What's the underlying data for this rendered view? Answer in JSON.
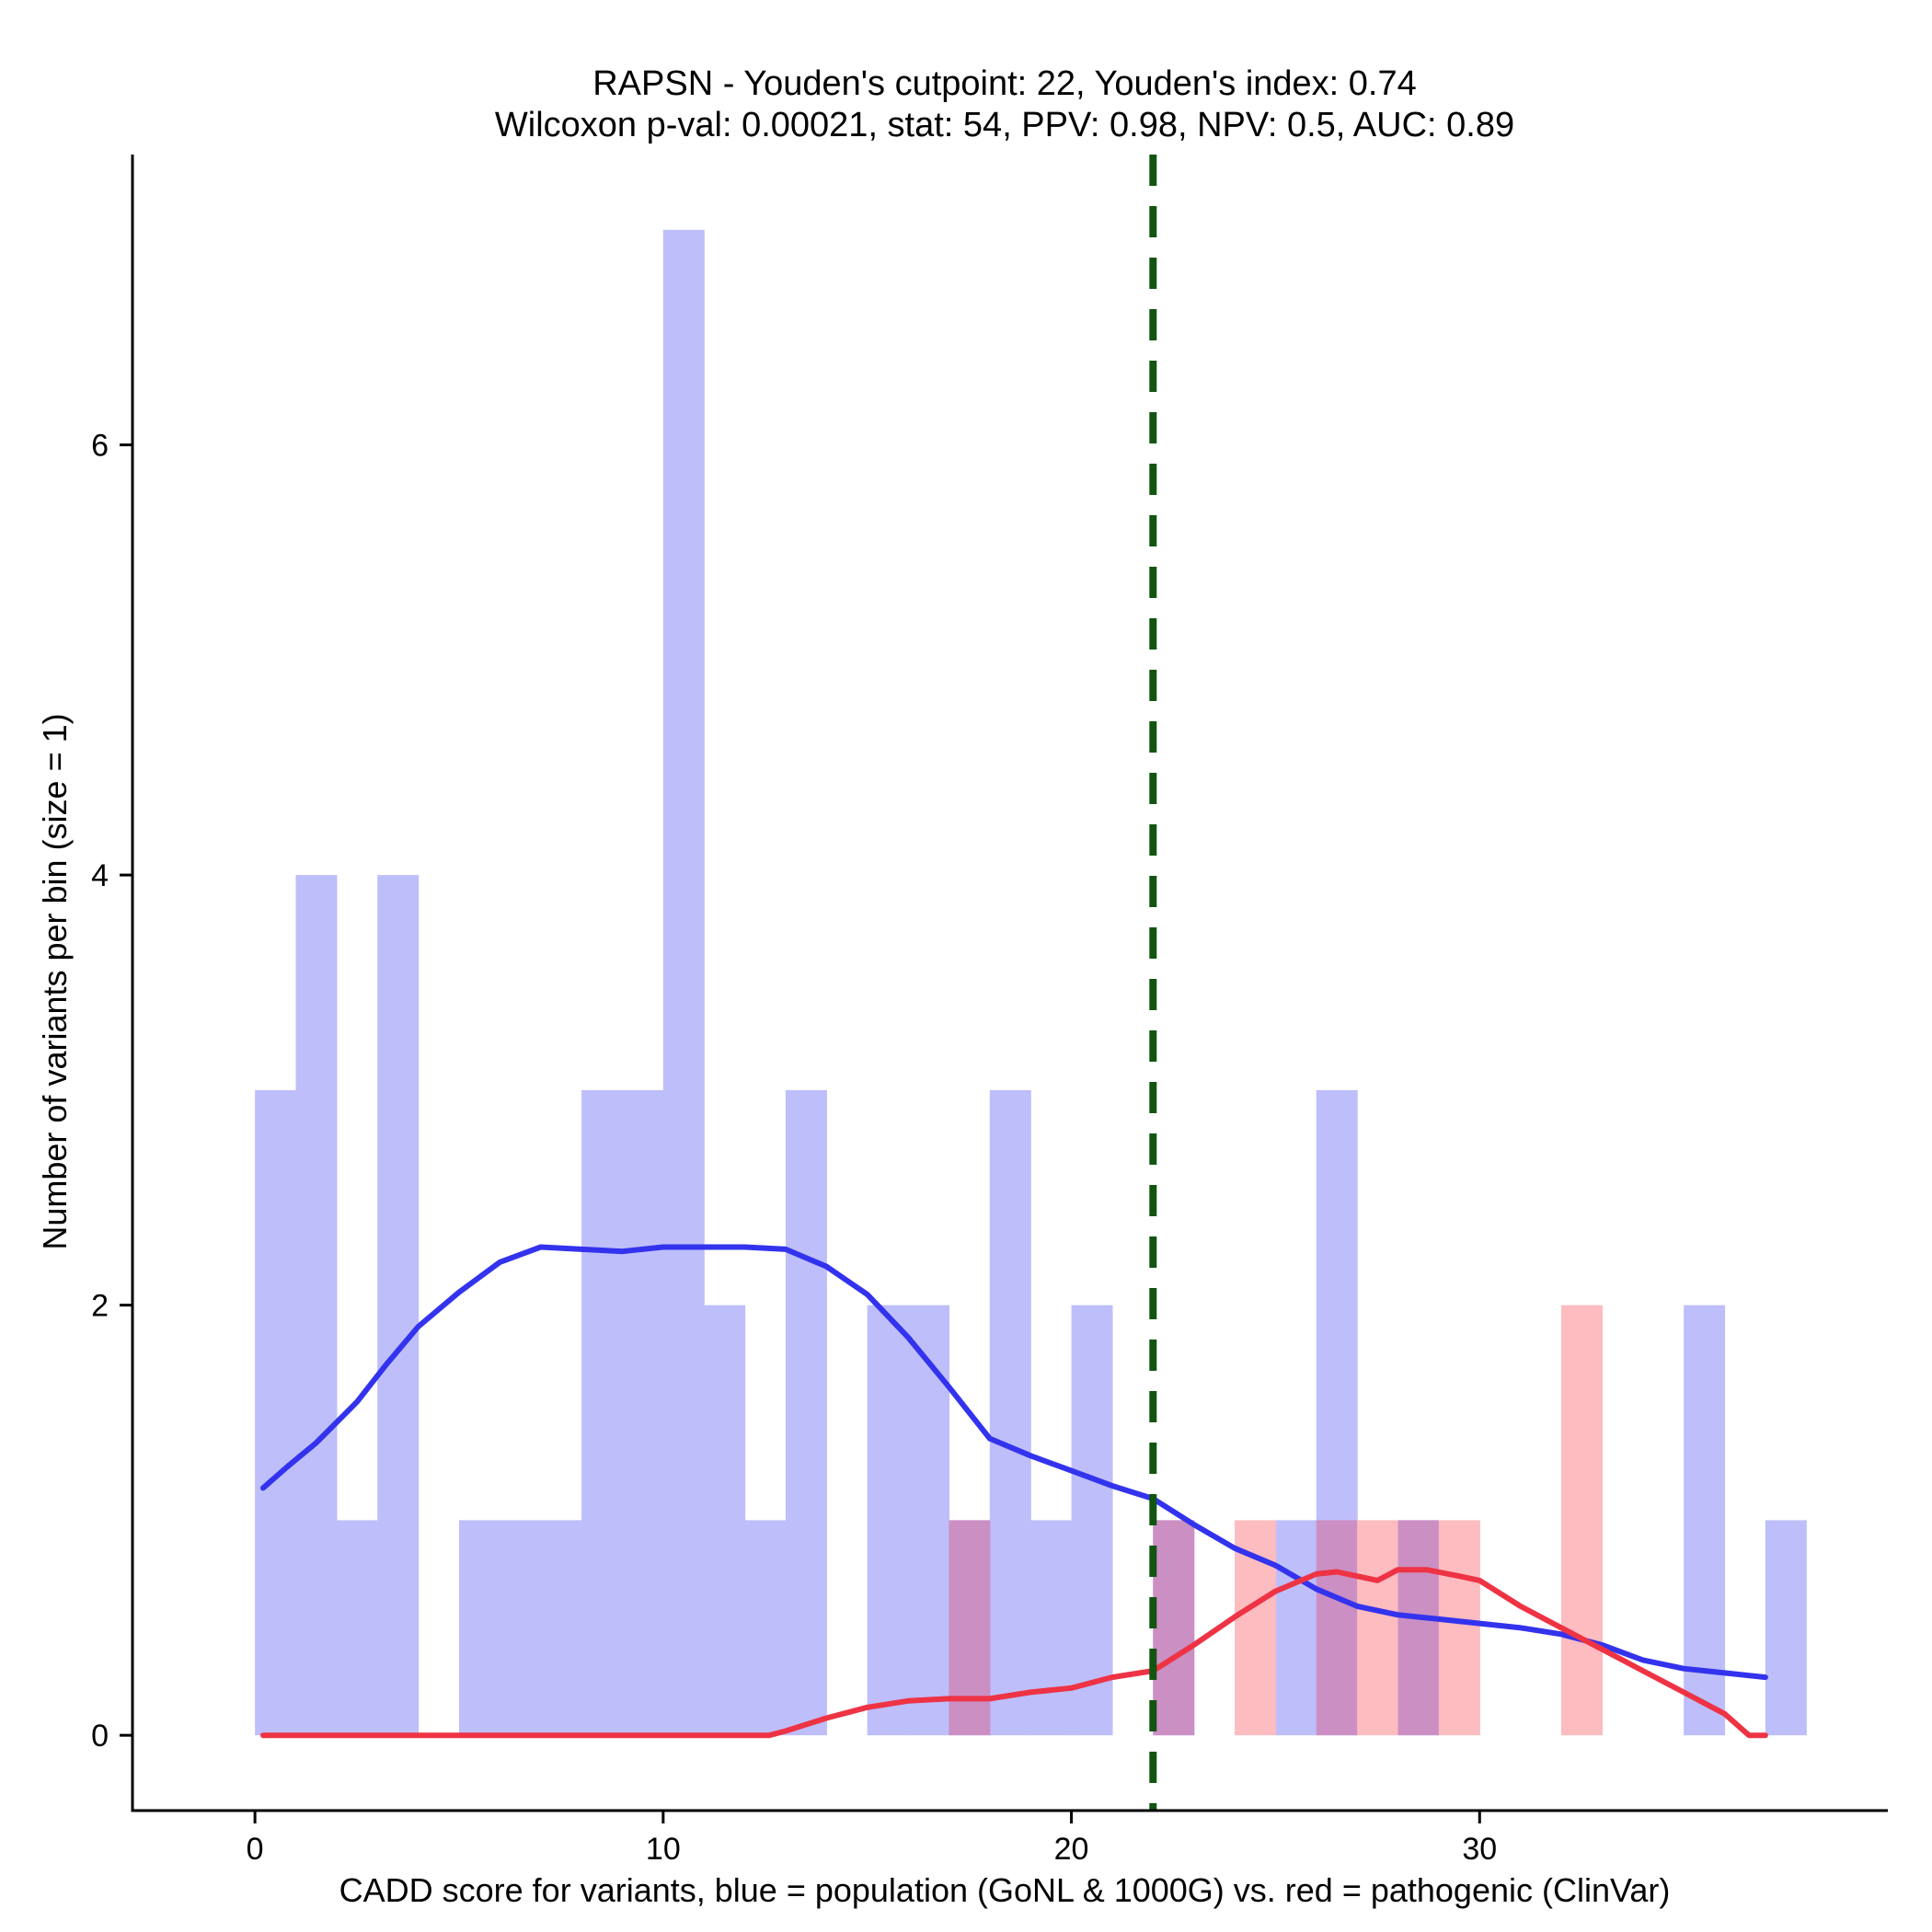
{
  "chart_data": {
    "type": "bar",
    "title": "RAPSN - Youden's cutpoint: 22, Youden's index: 0.74",
    "subtitle": "Wilcoxon p-val: 0.00021, stat: 54, PPV: 0.98, NPV: 0.5, AUC: 0.89",
    "xlabel": "CADD score for variants, blue = population (GoNL & 1000G) vs. red = pathogenic (ClinVar)",
    "ylabel": "Number of variants per bin (size = 1)",
    "xlim": [
      -3,
      40
    ],
    "ylim": [
      -0.35,
      7.35
    ],
    "x_ticks": [
      0,
      10,
      20,
      30
    ],
    "y_ticks": [
      0,
      2,
      4,
      6
    ],
    "bin_size": 1,
    "cutpoint": 22,
    "colors": {
      "population_bar": "#bebefb",
      "pathogenic_bar": "#fcbcc0",
      "overlap_bar": "#cb8fc3",
      "population_line": "#3333ee",
      "pathogenic_line": "#ee3344",
      "cutpoint_line": "#115511",
      "axis": "#000000"
    },
    "series": [
      {
        "name": "population (GoNL & 1000G)",
        "bins": [
          {
            "start": 0,
            "count": 3
          },
          {
            "start": 1,
            "count": 4
          },
          {
            "start": 2,
            "count": 1
          },
          {
            "start": 3,
            "count": 4
          },
          {
            "start": 5,
            "count": 1
          },
          {
            "start": 6,
            "count": 1
          },
          {
            "start": 7,
            "count": 1
          },
          {
            "start": 8,
            "count": 3
          },
          {
            "start": 9,
            "count": 3
          },
          {
            "start": 10,
            "count": 7
          },
          {
            "start": 11,
            "count": 2
          },
          {
            "start": 12,
            "count": 1
          },
          {
            "start": 13,
            "count": 3
          },
          {
            "start": 15,
            "count": 2
          },
          {
            "start": 16,
            "count": 2
          },
          {
            "start": 17,
            "count": 1
          },
          {
            "start": 18,
            "count": 3
          },
          {
            "start": 19,
            "count": 1
          },
          {
            "start": 20,
            "count": 2
          },
          {
            "start": 22,
            "count": 1
          },
          {
            "start": 25,
            "count": 1
          },
          {
            "start": 26,
            "count": 3
          },
          {
            "start": 28,
            "count": 1
          },
          {
            "start": 35,
            "count": 2
          },
          {
            "start": 37,
            "count": 1
          }
        ]
      },
      {
        "name": "pathogenic (ClinVar)",
        "bins": [
          {
            "start": 17,
            "count": 1
          },
          {
            "start": 22,
            "count": 1
          },
          {
            "start": 24,
            "count": 1
          },
          {
            "start": 26,
            "count": 1
          },
          {
            "start": 27,
            "count": 1
          },
          {
            "start": 28,
            "count": 1
          },
          {
            "start": 29,
            "count": 1
          },
          {
            "start": 32,
            "count": 2
          }
        ]
      }
    ],
    "density_lines": [
      {
        "name": "population density",
        "points": [
          [
            0.2,
            1.15
          ],
          [
            0.8,
            1.25
          ],
          [
            1.5,
            1.36
          ],
          [
            2.5,
            1.55
          ],
          [
            3.2,
            1.72
          ],
          [
            4.0,
            1.9
          ],
          [
            5.0,
            2.06
          ],
          [
            6.0,
            2.2
          ],
          [
            7.0,
            2.27
          ],
          [
            8.0,
            2.26
          ],
          [
            9.0,
            2.25
          ],
          [
            10.0,
            2.27
          ],
          [
            11.0,
            2.27
          ],
          [
            12.0,
            2.27
          ],
          [
            13.0,
            2.26
          ],
          [
            14.0,
            2.18
          ],
          [
            15.0,
            2.05
          ],
          [
            16.0,
            1.85
          ],
          [
            17.0,
            1.62
          ],
          [
            18.0,
            1.38
          ],
          [
            19.0,
            1.3
          ],
          [
            20.0,
            1.23
          ],
          [
            21.0,
            1.16
          ],
          [
            22.0,
            1.1
          ],
          [
            23.0,
            0.98
          ],
          [
            24.0,
            0.87
          ],
          [
            25.0,
            0.79
          ],
          [
            26.0,
            0.68
          ],
          [
            27.0,
            0.6
          ],
          [
            28.0,
            0.56
          ],
          [
            29.0,
            0.54
          ],
          [
            30.0,
            0.52
          ],
          [
            31.0,
            0.5
          ],
          [
            32.0,
            0.47
          ],
          [
            33.0,
            0.42
          ],
          [
            34.0,
            0.35
          ],
          [
            35.0,
            0.31
          ],
          [
            36.0,
            0.29
          ],
          [
            37.0,
            0.27
          ]
        ]
      },
      {
        "name": "pathogenic density",
        "points": [
          [
            0.2,
            0.0
          ],
          [
            5.0,
            0.0
          ],
          [
            10.0,
            0.0
          ],
          [
            12.6,
            0.0
          ],
          [
            13.0,
            0.02
          ],
          [
            14.0,
            0.08
          ],
          [
            15.0,
            0.13
          ],
          [
            16.0,
            0.16
          ],
          [
            17.0,
            0.17
          ],
          [
            18.0,
            0.17
          ],
          [
            19.0,
            0.2
          ],
          [
            20.0,
            0.22
          ],
          [
            21.0,
            0.27
          ],
          [
            22.0,
            0.3
          ],
          [
            23.0,
            0.42
          ],
          [
            24.0,
            0.55
          ],
          [
            25.0,
            0.67
          ],
          [
            26.0,
            0.75
          ],
          [
            26.5,
            0.76
          ],
          [
            27.0,
            0.74
          ],
          [
            27.5,
            0.72
          ],
          [
            28.0,
            0.77
          ],
          [
            28.7,
            0.77
          ],
          [
            29.5,
            0.74
          ],
          [
            30.0,
            0.72
          ],
          [
            31.0,
            0.6
          ],
          [
            32.0,
            0.5
          ],
          [
            33.0,
            0.4
          ],
          [
            34.0,
            0.3
          ],
          [
            35.0,
            0.2
          ],
          [
            36.0,
            0.1
          ],
          [
            36.6,
            0.0
          ],
          [
            37.0,
            0.0
          ]
        ]
      }
    ]
  }
}
